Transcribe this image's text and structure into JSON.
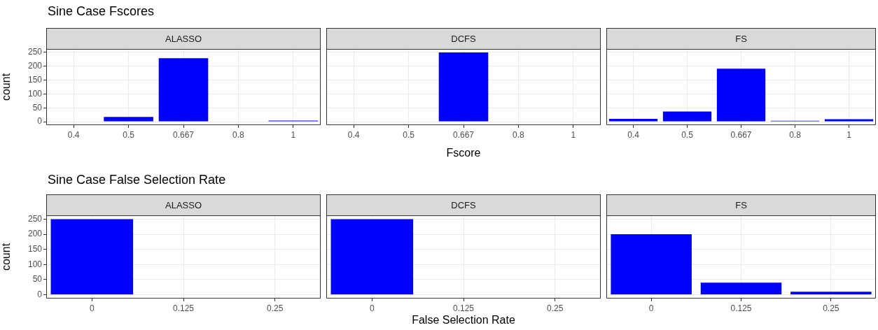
{
  "chart_data": [
    {
      "type": "bar",
      "title": "Sine Case Fscores",
      "subtitle": "ALASSO",
      "ylabel": "count",
      "categories": [
        "0.4",
        "0.5",
        "0.667",
        "0.8",
        "1"
      ],
      "values": [
        0,
        17,
        229,
        0,
        4
      ],
      "color": "#0000ff",
      "ylim": [
        -12.5,
        262.5
      ],
      "yticks": [
        0,
        50,
        100,
        150,
        200,
        250
      ],
      "grid": true
    },
    {
      "type": "bar",
      "subtitle": "DCFS",
      "xlabel": "Fscore",
      "categories": [
        "0.4",
        "0.5",
        "0.667",
        "0.8",
        "1"
      ],
      "values": [
        0,
        0,
        250,
        0,
        0
      ],
      "color": "#0000ff",
      "ylim": [
        -12.5,
        262.5
      ],
      "yticks": [
        0,
        50,
        100,
        150,
        200,
        250
      ],
      "grid": true,
      "tick_labels": "x"
    },
    {
      "type": "bar",
      "subtitle": "FS",
      "categories": [
        "0.4",
        "0.5",
        "0.667",
        "0.8",
        "1"
      ],
      "values": [
        10,
        37,
        191,
        3,
        9
      ],
      "color": "#0000ff",
      "ylim": [
        -12.5,
        262.5
      ],
      "yticks": [
        0,
        50,
        100,
        150,
        200,
        250
      ],
      "grid": true,
      "tick_labels": "x"
    },
    {
      "type": "bar",
      "title": "Sine Case False Selection Rate",
      "subtitle": "ALASSO",
      "ylabel": "count",
      "categories": [
        "0",
        "0.125",
        "0.25"
      ],
      "values": [
        250,
        0,
        0
      ],
      "color": "#0000ff",
      "ylim": [
        -12.5,
        262.5
      ],
      "yticks": [
        0,
        50,
        100,
        150,
        200,
        250
      ],
      "grid": true
    },
    {
      "type": "bar",
      "subtitle": "DCFS",
      "xlabel": "False Selection Rate",
      "categories": [
        "0",
        "0.125",
        "0.25"
      ],
      "values": [
        250,
        0,
        0
      ],
      "color": "#0000ff",
      "ylim": [
        -12.5,
        262.5
      ],
      "yticks": [
        0,
        50,
        100,
        150,
        200,
        250
      ],
      "grid": true,
      "tick_labels": "x"
    },
    {
      "type": "bar",
      "subtitle": "FS",
      "categories": [
        "0",
        "0.125",
        "0.25"
      ],
      "values": [
        200,
        40,
        10
      ],
      "color": "#0000ff",
      "ylim": [
        -12.5,
        262.5
      ],
      "yticks": [
        0,
        50,
        100,
        150,
        200,
        250
      ],
      "grid": true,
      "tick_labels": "x"
    }
  ]
}
